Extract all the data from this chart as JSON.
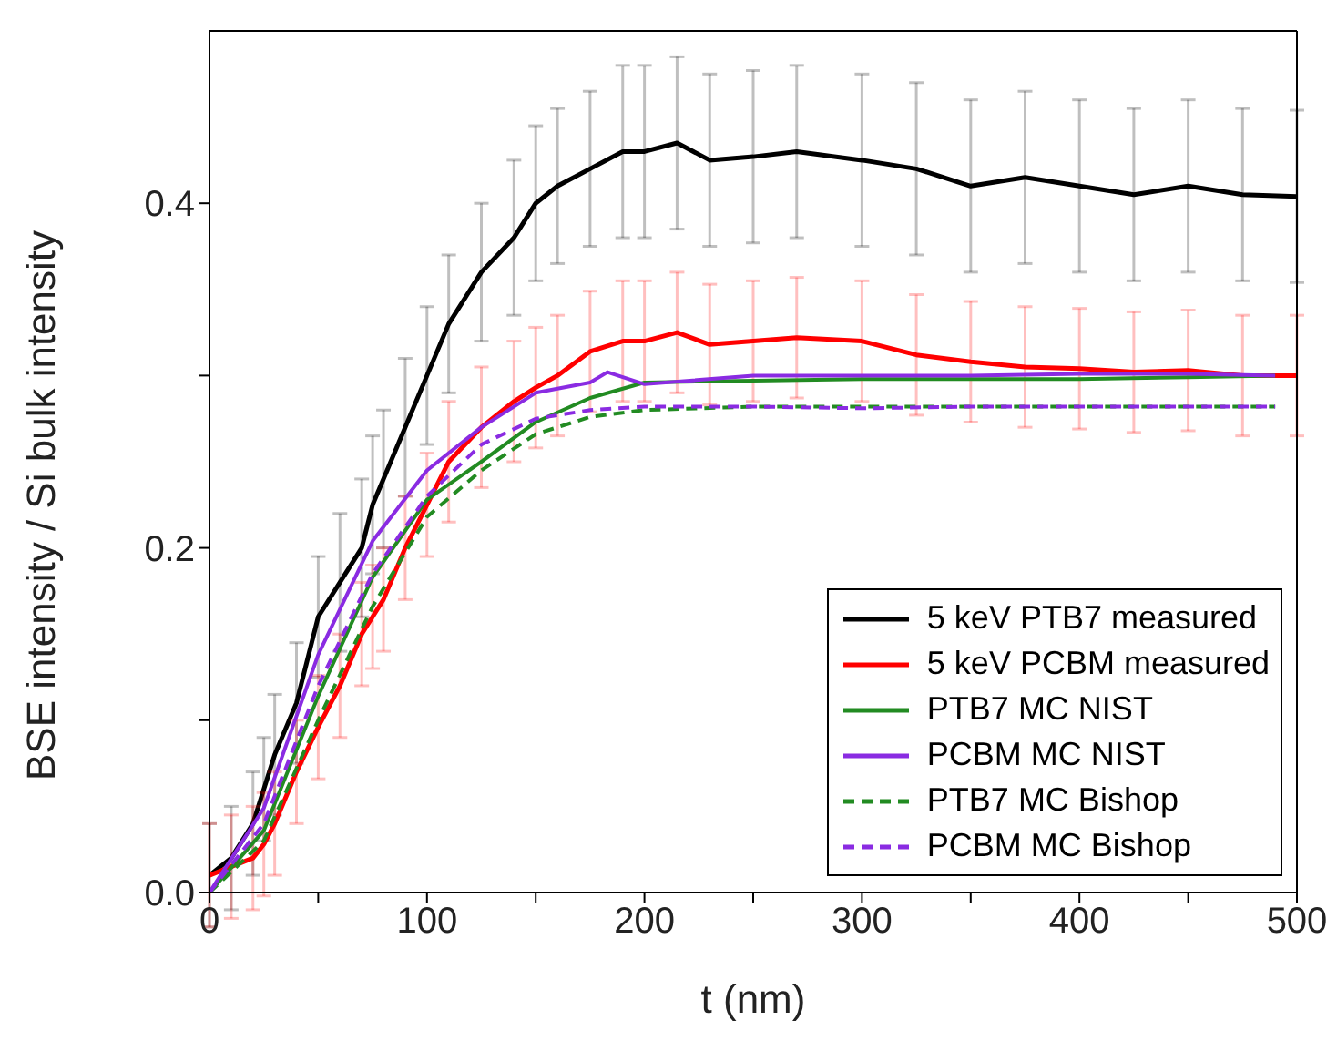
{
  "chart_data": {
    "type": "line",
    "xlabel": "t (nm)",
    "ylabel": "BSE intensity / Si bulk intensity",
    "xlim": [
      0,
      500
    ],
    "xticks": [
      0,
      {
        "value": 50,
        "label": null
      },
      100,
      {
        "value": 150,
        "label": null
      },
      200,
      {
        "value": 250,
        "label": null
      },
      300,
      {
        "value": 350,
        "label": null
      },
      400,
      {
        "value": 450,
        "label": null
      },
      500
    ],
    "ylim": [
      0,
      0.5
    ],
    "yticks": [
      {
        "value": 0,
        "label": "0.0"
      },
      {
        "value": 0.1,
        "label": null
      },
      0.2,
      {
        "value": 0.3,
        "label": null
      },
      0.4
    ],
    "legend": "bottom right",
    "grid": false,
    "marker": "none",
    "series": [
      {
        "name": "5 keV PTB7 measured",
        "color": "#000000",
        "line_style": "solid",
        "x": [
          0,
          10,
          20,
          25,
          30,
          40,
          50,
          60,
          70,
          75,
          80,
          90,
          100,
          110,
          125,
          140,
          150,
          160,
          175,
          190,
          200,
          215,
          230,
          250,
          270,
          300,
          325,
          350,
          375,
          400,
          425,
          450,
          475,
          500
        ],
        "values": [
          0.01,
          0.02,
          0.04,
          0.06,
          0.08,
          0.11,
          0.16,
          0.18,
          0.2,
          0.225,
          0.24,
          0.27,
          0.3,
          0.33,
          0.36,
          0.38,
          0.4,
          0.41,
          0.42,
          0.43,
          0.43,
          0.435,
          0.425,
          0.427,
          0.43,
          0.425,
          0.42,
          0.41,
          0.415,
          0.41,
          0.405,
          0.41,
          0.405,
          0.404
        ],
        "errors": [
          0.03,
          0.03,
          0.03,
          0.03,
          0.035,
          0.035,
          0.035,
          0.04,
          0.04,
          0.04,
          0.04,
          0.04,
          0.04,
          0.04,
          0.04,
          0.045,
          0.045,
          0.045,
          0.045,
          0.05,
          0.05,
          0.05,
          0.05,
          0.05,
          0.05,
          0.05,
          0.05,
          0.05,
          0.05,
          0.05,
          0.05,
          0.05,
          0.05,
          0.05
        ]
      },
      {
        "name": "5 keV PCBM measured",
        "color": "#ff0000",
        "line_style": "solid",
        "x": [
          0,
          10,
          20,
          25,
          30,
          40,
          50,
          60,
          70,
          75,
          80,
          90,
          100,
          110,
          125,
          140,
          150,
          160,
          175,
          190,
          200,
          215,
          230,
          250,
          270,
          300,
          325,
          350,
          375,
          400,
          425,
          450,
          475,
          500
        ],
        "values": [
          0.01,
          0.015,
          0.02,
          0.028,
          0.04,
          0.07,
          0.096,
          0.12,
          0.15,
          0.16,
          0.17,
          0.2,
          0.225,
          0.25,
          0.27,
          0.285,
          0.293,
          0.3,
          0.314,
          0.32,
          0.32,
          0.325,
          0.318,
          0.32,
          0.322,
          0.32,
          0.312,
          0.308,
          0.305,
          0.304,
          0.302,
          0.303,
          0.3,
          0.3
        ],
        "errors": [
          0.03,
          0.03,
          0.03,
          0.03,
          0.03,
          0.03,
          0.03,
          0.03,
          0.03,
          0.03,
          0.03,
          0.03,
          0.03,
          0.035,
          0.035,
          0.035,
          0.035,
          0.035,
          0.035,
          0.035,
          0.035,
          0.035,
          0.035,
          0.035,
          0.035,
          0.035,
          0.035,
          0.035,
          0.035,
          0.035,
          0.035,
          0.035,
          0.035,
          0.035
        ]
      },
      {
        "name": "PTB7 MC NIST",
        "color": "#228b22",
        "line_style": "solid",
        "x": [
          0,
          25,
          50,
          75,
          100,
          125,
          150,
          175,
          200,
          250,
          300,
          350,
          400,
          450,
          490
        ],
        "values": [
          0,
          0.036,
          0.114,
          0.183,
          0.228,
          0.25,
          0.273,
          0.287,
          0.296,
          0.297,
          0.298,
          0.298,
          0.298,
          0.299,
          0.3
        ]
      },
      {
        "name": "PCBM MC NIST",
        "color": "#8a2be2",
        "line_style": "solid",
        "x": [
          0,
          25,
          50,
          75,
          100,
          125,
          150,
          175,
          183,
          200,
          250,
          300,
          350,
          400,
          450,
          490
        ],
        "values": [
          0,
          0.049,
          0.138,
          0.204,
          0.245,
          0.27,
          0.29,
          0.296,
          0.302,
          0.295,
          0.3,
          0.3,
          0.3,
          0.301,
          0.301,
          0.3
        ]
      },
      {
        "name": "PTB7 MC Bishop",
        "color": "#228b22",
        "line_style": "dashed",
        "x": [
          0,
          25,
          50,
          75,
          100,
          125,
          150,
          175,
          200,
          250,
          300,
          350,
          400,
          450,
          490
        ],
        "values": [
          0,
          0.03,
          0.1,
          0.166,
          0.218,
          0.245,
          0.266,
          0.276,
          0.28,
          0.282,
          0.282,
          0.282,
          0.282,
          0.282,
          0.282
        ]
      },
      {
        "name": "PCBM MC Bishop",
        "color": "#8a2be2",
        "line_style": "dashed",
        "x": [
          0,
          25,
          50,
          75,
          100,
          125,
          150,
          175,
          200,
          250,
          300,
          350,
          400,
          450,
          490
        ],
        "values": [
          0,
          0.04,
          0.12,
          0.185,
          0.23,
          0.26,
          0.275,
          0.28,
          0.282,
          0.282,
          0.281,
          0.282,
          0.282,
          0.282,
          0.282
        ]
      }
    ]
  }
}
